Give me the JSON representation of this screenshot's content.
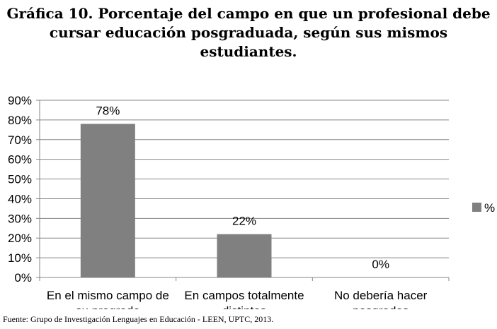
{
  "title_lines": [
    "Gráfica 10. Porcentaje del campo en que un profesional debe",
    "cursar educación posgraduada, según sus mismos estudiantes."
  ],
  "source": "Fuente: Grupo de Investigación Lenguajes en Educación - LEEN, UPTC, 2013.",
  "chart_data": {
    "type": "bar",
    "title": "Gráfica 10. Porcentaje del campo en que un profesional debe cursar educación posgraduada, según sus mismos estudiantes.",
    "categories": [
      [
        "En el mismo campo de",
        "su pregrado"
      ],
      [
        "En campos totalmente",
        "distintos"
      ],
      [
        "No debería hacer",
        "posgrados"
      ]
    ],
    "series": [
      {
        "name": "%",
        "values": [
          78,
          22,
          0
        ],
        "color": "#808080"
      }
    ],
    "data_labels": [
      "78%",
      "22%",
      "0%"
    ],
    "ylim": [
      0,
      90
    ],
    "yticks": [
      0,
      10,
      20,
      30,
      40,
      50,
      60,
      70,
      80,
      90
    ],
    "ytick_labels": [
      "0%",
      "10%",
      "20%",
      "30%",
      "40%",
      "50%",
      "60%",
      "70%",
      "80%",
      "90%"
    ],
    "xlabel": "",
    "ylabel": "",
    "grid": true,
    "legend": "right",
    "gridline_color": "#868686"
  }
}
